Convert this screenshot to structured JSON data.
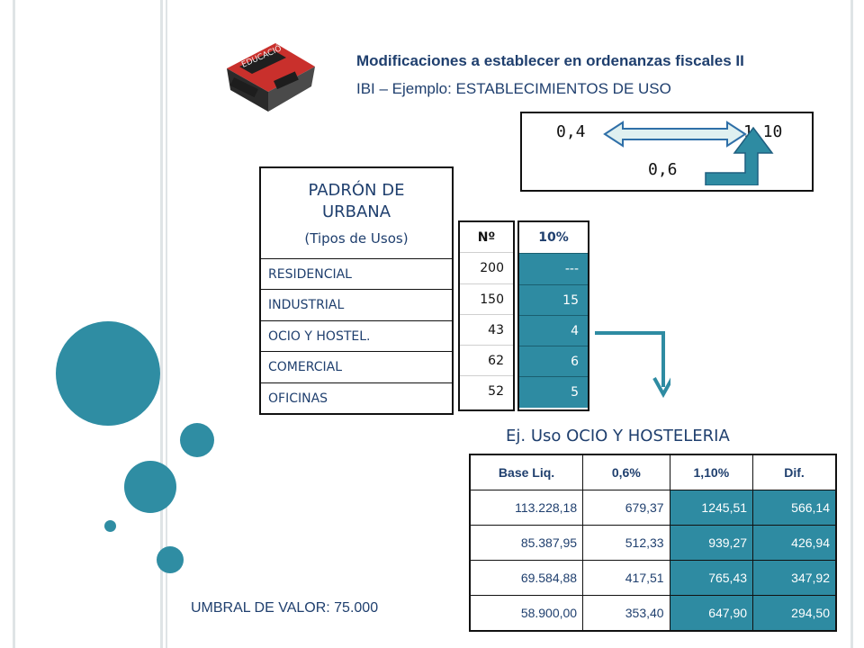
{
  "header": {
    "title": "Modificaciones a establecer en ordenanzas fiscales II",
    "subtitle": "IBI – Ejemplo: ESTABLECIMIENTOS DE USO"
  },
  "rates": {
    "left": "0,4",
    "right": "1,10",
    "base": "0,6"
  },
  "padron": {
    "title": "PADRÓN DE URBANA",
    "subtitle": "(Tipos de Usos)",
    "rows": [
      "RESIDENCIAL",
      "INDUSTRIAL",
      "OCIO Y HOSTEL.",
      "COMERCIAL",
      "OFICINAS"
    ]
  },
  "counts": {
    "header": "Nº",
    "values": [
      "200",
      "150",
      "43",
      "62",
      "52"
    ]
  },
  "ten_percent": {
    "header": "10%",
    "values": [
      "---",
      "15",
      "4",
      "6",
      "5"
    ]
  },
  "example": {
    "title": "Ej. Uso OCIO Y HOSTELERIA",
    "headers": [
      "Base Liq.",
      "0,6%",
      "1,10%",
      "Dif."
    ],
    "rows": [
      [
        "113.228,18",
        "679,37",
        "1245,51",
        "566,14"
      ],
      [
        "85.387,95",
        "512,33",
        "939,27",
        "426,94"
      ],
      [
        "69.584,88",
        "417,51",
        "765,43",
        "347,92"
      ],
      [
        "58.900,00",
        "353,40",
        "647,90",
        "294,50"
      ]
    ]
  },
  "footer": {
    "threshold": "UMBRAL DE VALOR: 75.000"
  },
  "logo": {
    "icon": "house-logo-icon",
    "text": "EDUCACIÓ"
  },
  "colors": {
    "accent": "#2e8ba2",
    "text": "#1f3f6e",
    "arrow_fill": "#dff0f0",
    "arrow_stroke": "#2f6fa8"
  }
}
